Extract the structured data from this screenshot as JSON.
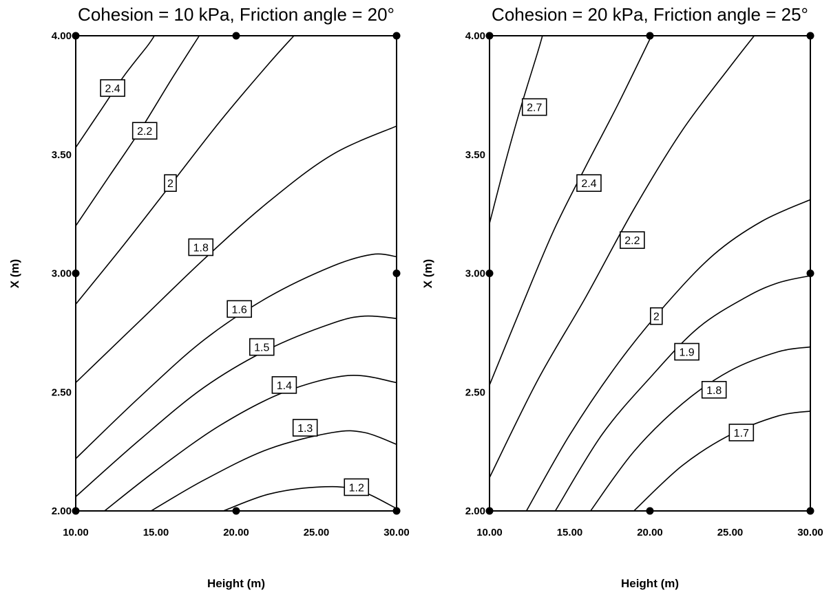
{
  "chart_data": [
    {
      "type": "contour",
      "title": "Cohesion = 10  kPa,  Friction angle = 20°",
      "xlabel": "Height  (m)",
      "ylabel": "X (m)",
      "xlim": [
        10,
        30
      ],
      "ylim": [
        2,
        4
      ],
      "xticks": [
        "10.00",
        "15.00",
        "20.00",
        "25.00",
        "30.00"
      ],
      "yticks": [
        "2.00",
        "2.50",
        "3.00",
        "3.50",
        "4.00"
      ],
      "design_points": [
        [
          10,
          2
        ],
        [
          20,
          2
        ],
        [
          30,
          2
        ],
        [
          10,
          3
        ],
        [
          30,
          3
        ],
        [
          10,
          4
        ],
        [
          20,
          4
        ],
        [
          30,
          4
        ]
      ],
      "contours": [
        {
          "level": "2.4",
          "points": [
            [
              10,
              3.53
            ],
            [
              11.5,
              3.68
            ],
            [
              13,
              3.83
            ],
            [
              14.5,
              3.96
            ],
            [
              14.9,
              4.0
            ]
          ],
          "label_at": [
            12.3,
            3.78
          ]
        },
        {
          "level": "2.2",
          "points": [
            [
              10,
              3.2
            ],
            [
              12,
              3.4
            ],
            [
              14,
              3.6
            ],
            [
              16,
              3.82
            ],
            [
              17.7,
              4.0
            ]
          ],
          "label_at": [
            14.3,
            3.6
          ]
        },
        {
          "level": "2",
          "points": [
            [
              10,
              2.87
            ],
            [
              13,
              3.12
            ],
            [
              16,
              3.38
            ],
            [
              19,
              3.64
            ],
            [
              22,
              3.88
            ],
            [
              23.6,
              4.0
            ]
          ],
          "label_at": [
            15.9,
            3.38
          ]
        },
        {
          "level": "1.8",
          "points": [
            [
              10,
              2.54
            ],
            [
              14,
              2.8
            ],
            [
              18,
              3.06
            ],
            [
              22,
              3.3
            ],
            [
              26,
              3.5
            ],
            [
              30,
              3.62
            ]
          ],
          "label_at": [
            17.8,
            3.11
          ]
        },
        {
          "level": "1.6",
          "points": [
            [
              10,
              2.22
            ],
            [
              14,
              2.48
            ],
            [
              18,
              2.72
            ],
            [
              22,
              2.9
            ],
            [
              26,
              3.03
            ],
            [
              28.5,
              3.08
            ],
            [
              30,
              3.07
            ]
          ],
          "label_at": [
            20.2,
            2.85
          ]
        },
        {
          "level": "1.5",
          "points": [
            [
              10,
              2.06
            ],
            [
              14,
              2.3
            ],
            [
              18,
              2.52
            ],
            [
              22,
              2.68
            ],
            [
              26,
              2.79
            ],
            [
              28,
              2.82
            ],
            [
              30,
              2.81
            ]
          ],
          "label_at": [
            21.6,
            2.69
          ]
        },
        {
          "level": "1.4",
          "points": [
            [
              11.8,
              2.0
            ],
            [
              15,
              2.17
            ],
            [
              19,
              2.36
            ],
            [
              23,
              2.5
            ],
            [
              27,
              2.57
            ],
            [
              30,
              2.54
            ]
          ],
          "label_at": [
            23,
            2.53
          ]
        },
        {
          "level": "1.3",
          "points": [
            [
              14.7,
              2.0
            ],
            [
              18,
              2.13
            ],
            [
              22,
              2.26
            ],
            [
              26,
              2.33
            ],
            [
              28,
              2.33
            ],
            [
              30,
              2.28
            ]
          ],
          "label_at": [
            24.3,
            2.35
          ]
        },
        {
          "level": "1.2",
          "points": [
            [
              19.2,
              2.0
            ],
            [
              22,
              2.07
            ],
            [
              25,
              2.1
            ],
            [
              27.5,
              2.09
            ],
            [
              30,
              2.01
            ]
          ],
          "label_at": [
            27.5,
            2.1
          ]
        }
      ]
    },
    {
      "type": "contour",
      "title": "Cohesion = 20 kPa,  Friction angle = 25°",
      "xlabel": "Height (m)",
      "ylabel": "X (m)",
      "xlim": [
        10,
        30
      ],
      "ylim": [
        2,
        4
      ],
      "xticks": [
        "10.00",
        "15.00",
        "20.00",
        "25.00",
        "30.00"
      ],
      "yticks": [
        "2.00",
        "2.50",
        "3.00",
        "3.50",
        "4.00"
      ],
      "design_points": [
        [
          10,
          2
        ],
        [
          20,
          2
        ],
        [
          30,
          2
        ],
        [
          10,
          3
        ],
        [
          30,
          3
        ],
        [
          10,
          4
        ],
        [
          20,
          4
        ],
        [
          30,
          4
        ]
      ],
      "contours": [
        {
          "level": "2.7",
          "points": [
            [
              10,
              3.21
            ],
            [
              11,
              3.47
            ],
            [
              12,
              3.71
            ],
            [
              13,
              3.93
            ],
            [
              13.3,
              4.0
            ]
          ],
          "label_at": [
            12.8,
            3.7
          ]
        },
        {
          "level": "2.4",
          "points": [
            [
              10,
              2.53
            ],
            [
              12,
              2.86
            ],
            [
              14,
              3.18
            ],
            [
              16,
              3.45
            ],
            [
              18,
              3.71
            ],
            [
              20.1,
              4.0
            ]
          ],
          "label_at": [
            16.2,
            3.38
          ]
        },
        {
          "level": "2.2",
          "points": [
            [
              10,
              2.14
            ],
            [
              13,
              2.55
            ],
            [
              16,
              2.9
            ],
            [
              19,
              3.27
            ],
            [
              22,
              3.6
            ],
            [
              25,
              3.87
            ],
            [
              26.5,
              4.0
            ]
          ],
          "label_at": [
            18.9,
            3.14
          ]
        },
        {
          "level": "2",
          "points": [
            [
              12.3,
              2.0
            ],
            [
              15,
              2.32
            ],
            [
              18,
              2.62
            ],
            [
              21,
              2.87
            ],
            [
              24,
              3.08
            ],
            [
              27,
              3.22
            ],
            [
              30,
              3.31
            ]
          ],
          "label_at": [
            20.4,
            2.82
          ]
        },
        {
          "level": "1.9",
          "points": [
            [
              14.1,
              2.0
            ],
            [
              17,
              2.32
            ],
            [
              20,
              2.56
            ],
            [
              23,
              2.77
            ],
            [
              26,
              2.9
            ],
            [
              28,
              2.96
            ],
            [
              30,
              2.99
            ]
          ],
          "label_at": [
            22.3,
            2.67
          ]
        },
        {
          "level": "1.8",
          "points": [
            [
              16.3,
              2.0
            ],
            [
              19,
              2.25
            ],
            [
              22,
              2.45
            ],
            [
              25,
              2.59
            ],
            [
              28,
              2.67
            ],
            [
              30,
              2.69
            ]
          ],
          "label_at": [
            24,
            2.51
          ]
        },
        {
          "level": "1.7",
          "points": [
            [
              19,
              2.0
            ],
            [
              22,
              2.19
            ],
            [
              25,
              2.32
            ],
            [
              28,
              2.4
            ],
            [
              30,
              2.42
            ]
          ],
          "label_at": [
            25.7,
            2.33
          ]
        }
      ]
    }
  ]
}
